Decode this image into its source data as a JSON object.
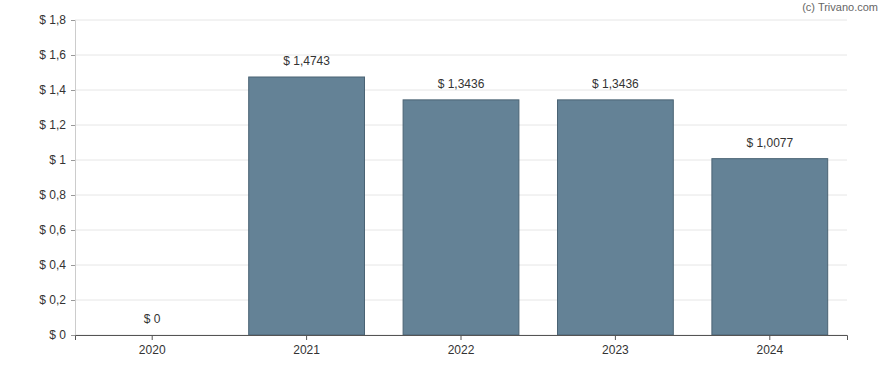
{
  "chart_data": {
    "type": "bar",
    "annotations": [
      "(c) Trivano.com"
    ],
    "categories": [
      "2020",
      "2021",
      "2022",
      "2023",
      "2024"
    ],
    "values": [
      0,
      1.4743,
      1.3436,
      1.3436,
      1.0077
    ],
    "value_labels": [
      "$ 0",
      "$ 1,4743",
      "$ 1,3436",
      "$ 1,3436",
      "$ 1,0077"
    ],
    "data_labels": true,
    "color": "#648296",
    "ylim": [
      0,
      1.8
    ],
    "yticks": [
      {
        "value": 0,
        "label": "$ 0"
      },
      {
        "value": 0.2,
        "label": "$ 0,2"
      },
      {
        "value": 0.4,
        "label": "$ 0,4"
      },
      {
        "value": 0.6,
        "label": "$ 0,6"
      },
      {
        "value": 0.8,
        "label": "$ 0,8"
      },
      {
        "value": 1,
        "label": "$ 1"
      },
      {
        "value": 1.2,
        "label": "$ 1,2"
      },
      {
        "value": 1.4,
        "label": "$ 1,4"
      },
      {
        "value": 1.6,
        "label": "$ 1,6"
      },
      {
        "value": 1.8,
        "label": "$ 1,8"
      }
    ],
    "grid": true
  }
}
